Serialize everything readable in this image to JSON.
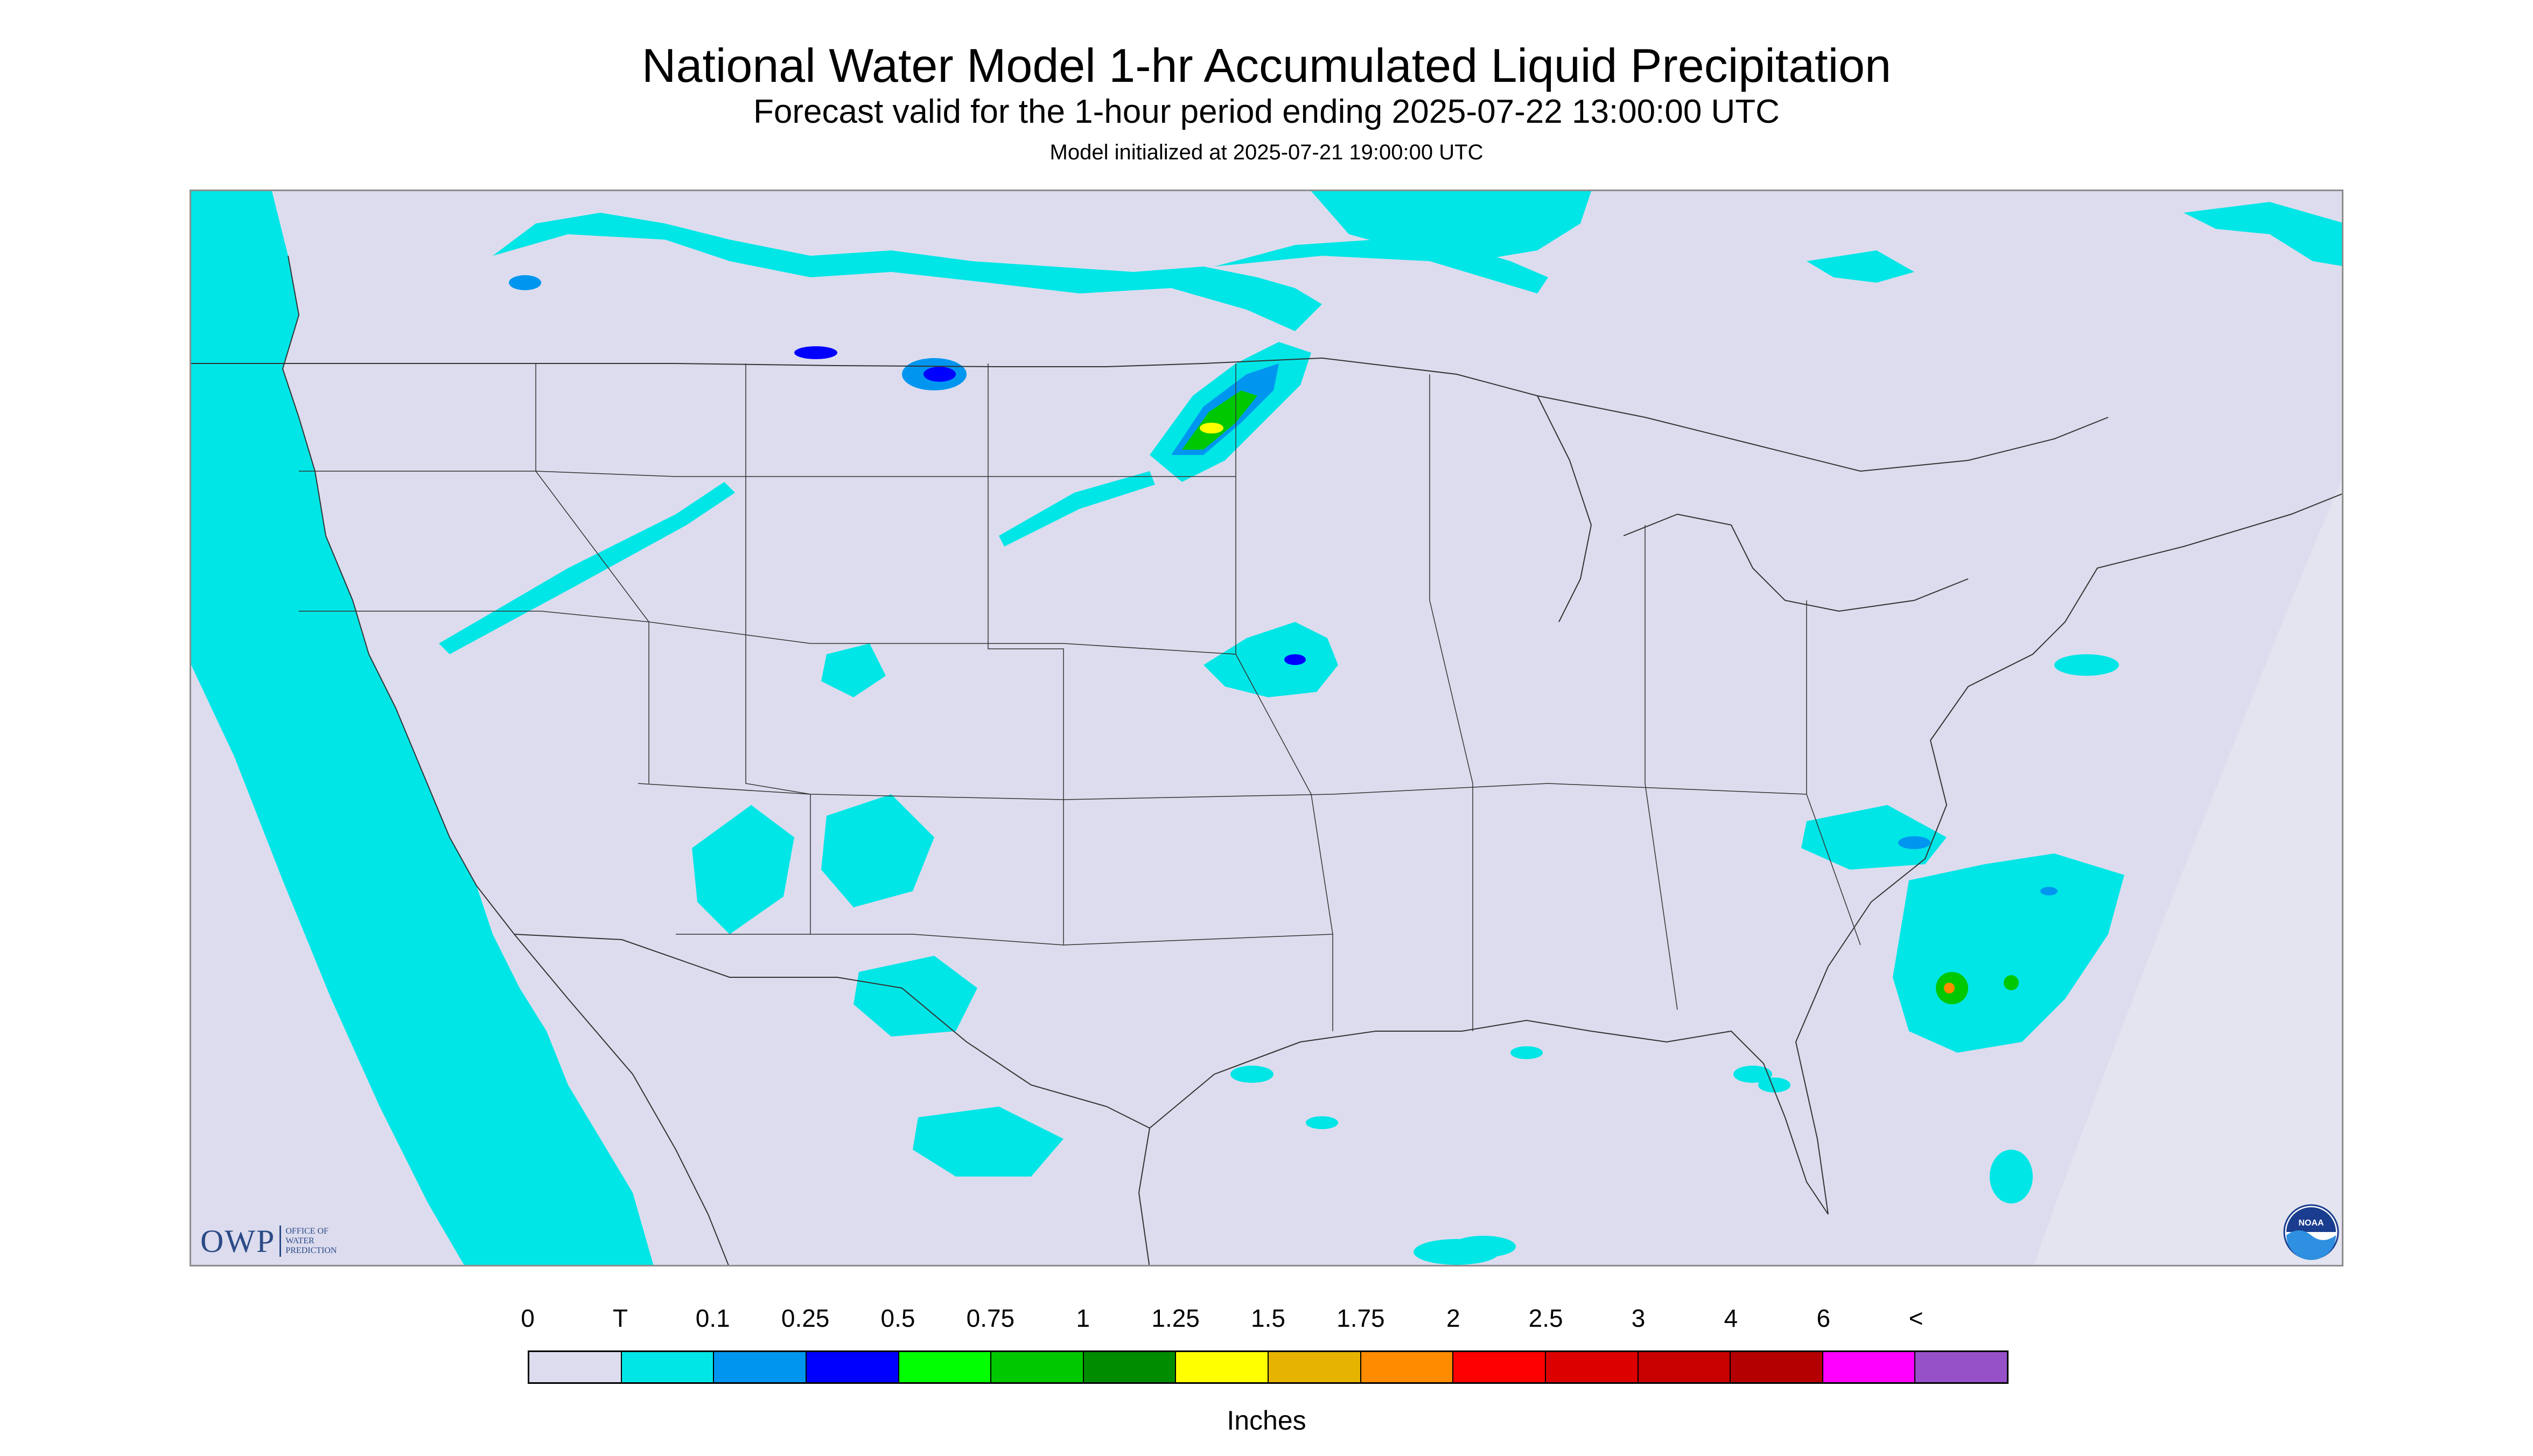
{
  "header": {
    "title": "National Water Model 1-hr Accumulated Liquid Precipitation",
    "subtitle": "Forecast valid for the 1-hour period ending 2025-07-22 13:00:00 UTC",
    "model_init": "Model initialized at 2025-07-21 19:00:00 UTC"
  },
  "logos": {
    "owp_text": "OWP",
    "owp_subtext": [
      "OFFICE OF",
      "WATER",
      "PREDICTION"
    ],
    "noaa_text": "NOAA"
  },
  "map": {
    "region": "Continental United States",
    "background_color": "#dcdcee",
    "outside_domain_color": "#dcdcee",
    "boundary_color": "#333333"
  },
  "legend": {
    "labels": [
      "0",
      "T",
      "0.1",
      "0.25",
      "0.5",
      "0.75",
      "1",
      "1.25",
      "1.5",
      "1.75",
      "2",
      "2.5",
      "3",
      "4",
      "6",
      "<"
    ],
    "colors": [
      "#dcdcee",
      "#00e6e6",
      "#0096f0",
      "#0000ff",
      "#00ff00",
      "#00c800",
      "#008c00",
      "#ffff00",
      "#e6b400",
      "#ff8c00",
      "#ff0000",
      "#dc0000",
      "#c80000",
      "#b40000",
      "#ff00ff",
      "#9650c8"
    ],
    "units": "Inches"
  }
}
